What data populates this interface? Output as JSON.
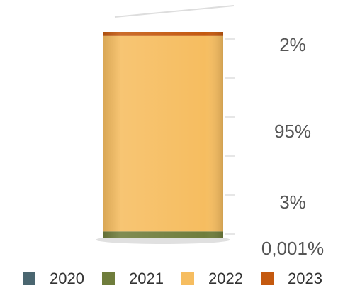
{
  "chart_data": {
    "type": "stacked-bar",
    "series": [
      {
        "name": "2020",
        "color": "#4a6670",
        "values": [
          0.001
        ],
        "value_labels": [
          "0,001%"
        ]
      },
      {
        "name": "2021",
        "color": "#6f7d3c",
        "values": [
          3
        ],
        "value_labels": [
          "3%"
        ]
      },
      {
        "name": "2022",
        "color": "#f6bd60",
        "values": [
          95
        ],
        "value_labels": [
          "95%"
        ]
      },
      {
        "name": "2023",
        "color": "#c4590f",
        "values": [
          2
        ],
        "value_labels": [
          "2%"
        ]
      }
    ]
  }
}
